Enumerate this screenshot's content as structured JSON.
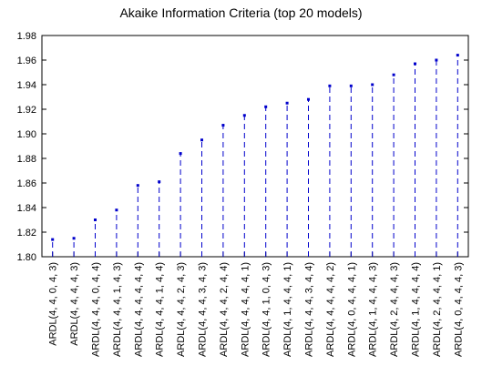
{
  "chart_data": {
    "type": "line",
    "title": "Akaike Information Criteria (top 20 models)",
    "xlabel": "",
    "ylabel": "",
    "ylim": [
      1.8,
      1.98
    ],
    "yticks": [
      1.8,
      1.82,
      1.84,
      1.86,
      1.88,
      1.9,
      1.92,
      1.94,
      1.96,
      1.98
    ],
    "grid": false,
    "marker_color": "#0000cc",
    "categories": [
      "ARDL(4, 4, 0, 4, 3)",
      "ARDL(4, 4, 4, 4, 3)",
      "ARDL(4, 4, 4, 0, 4, 4)",
      "ARDL(4, 4, 4, 1, 4, 3)",
      "ARDL(4, 4, 4, 4, 4, 4)",
      "ARDL(4, 4, 4, 1, 4, 4)",
      "ARDL(4, 4, 4, 2, 4, 3)",
      "ARDL(4, 4, 4, 3, 4, 3)",
      "ARDL(4, 4, 4, 2, 4, 4)",
      "ARDL(4, 4, 4, 4, 4, 1)",
      "ARDL(4, 4, 1, 0, 4, 3)",
      "ARDL(4, 1, 4, 4, 4, 1)",
      "ARDL(4, 4, 4, 3, 4, 4)",
      "ARDL(4, 4, 4, 4, 4, 2)",
      "ARDL(4, 0, 4, 4, 4, 1)",
      "ARDL(4, 1, 4, 4, 4, 3)",
      "ARDL(4, 2, 4, 4, 4, 3)",
      "ARDL(4, 1, 4, 4, 4, 4)",
      "ARDL(4, 2, 4, 4, 4, 1)",
      "ARDL(4, 0, 4, 4, 4, 3)"
    ],
    "values": [
      1.814,
      1.815,
      1.83,
      1.838,
      1.858,
      1.861,
      1.884,
      1.895,
      1.907,
      1.915,
      1.922,
      1.925,
      1.928,
      1.939,
      1.939,
      1.94,
      1.948,
      1.957,
      1.96,
      1.964
    ]
  }
}
